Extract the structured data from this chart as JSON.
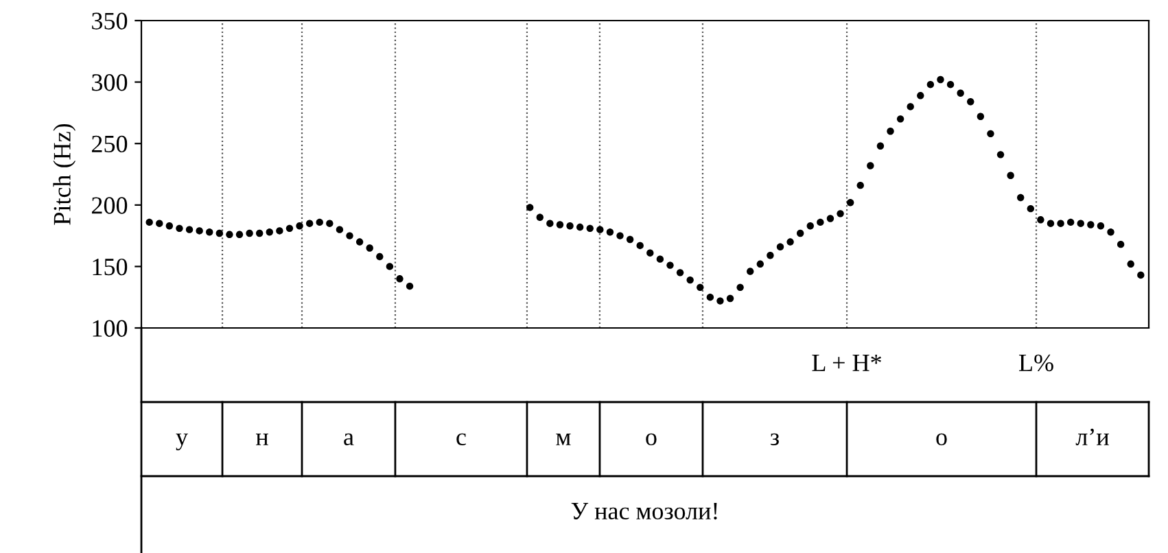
{
  "chart_data": {
    "type": "scatter",
    "ylabel": "Pitch (Hz)",
    "categories": [
      null,
      null,
      null,
      null,
      null,
      null,
      null,
      null,
      null,
      null,
      null,
      null,
      null,
      null,
      null,
      null,
      null,
      null,
      null,
      null,
      null,
      null,
      null,
      null,
      null,
      null,
      null,
      null,
      null,
      null,
      null,
      null,
      null,
      null,
      null,
      null,
      null,
      null,
      null,
      null,
      null,
      null,
      null,
      null,
      null,
      null,
      null,
      null,
      null,
      null,
      null,
      null,
      null,
      null,
      null,
      null,
      null,
      null,
      null,
      null,
      null,
      null,
      null,
      null,
      null,
      null,
      null,
      null,
      null,
      null,
      null,
      null,
      null,
      null,
      null,
      null,
      null,
      null,
      null,
      null,
      null,
      null,
      null,
      null,
      null,
      null,
      null,
      null,
      null,
      null,
      null,
      null,
      null,
      null,
      null,
      null,
      null,
      null,
      null,
      null
    ],
    "series": [
      {
        "color": "#000000",
        "values": [
          186,
          185,
          183,
          181,
          180,
          179,
          178,
          177,
          176,
          176,
          177,
          177,
          178,
          179,
          181,
          183,
          185,
          186,
          185,
          180,
          175,
          170,
          165,
          158,
          150,
          140,
          134,
          null,
          null,
          null,
          null,
          null,
          null,
          null,
          null,
          null,
          null,
          null,
          198,
          190,
          185,
          184,
          183,
          182,
          181,
          180,
          178,
          175,
          172,
          167,
          161,
          156,
          151,
          145,
          139,
          133,
          125,
          122,
          124,
          133,
          146,
          152,
          159,
          166,
          170,
          177,
          183,
          186,
          189,
          193,
          202,
          216,
          232,
          248,
          260,
          270,
          280,
          289,
          298,
          302,
          298,
          291,
          284,
          272,
          258,
          241,
          224,
          206,
          197,
          188,
          185,
          185,
          186,
          185,
          184,
          183,
          178,
          168,
          152,
          143
        ]
      }
    ],
    "marker": "circle",
    "grid": false,
    "tick_labels": "y",
    "ylim": [
      100,
      350
    ],
    "yticks": [
      100,
      150,
      200,
      250,
      300,
      350
    ],
    "annotations": [
      "L + H*",
      "L%",
      "у",
      "н",
      "а",
      "с",
      "м",
      "о",
      "з",
      "о",
      "л’и",
      "У нас мозоли!"
    ]
  }
}
